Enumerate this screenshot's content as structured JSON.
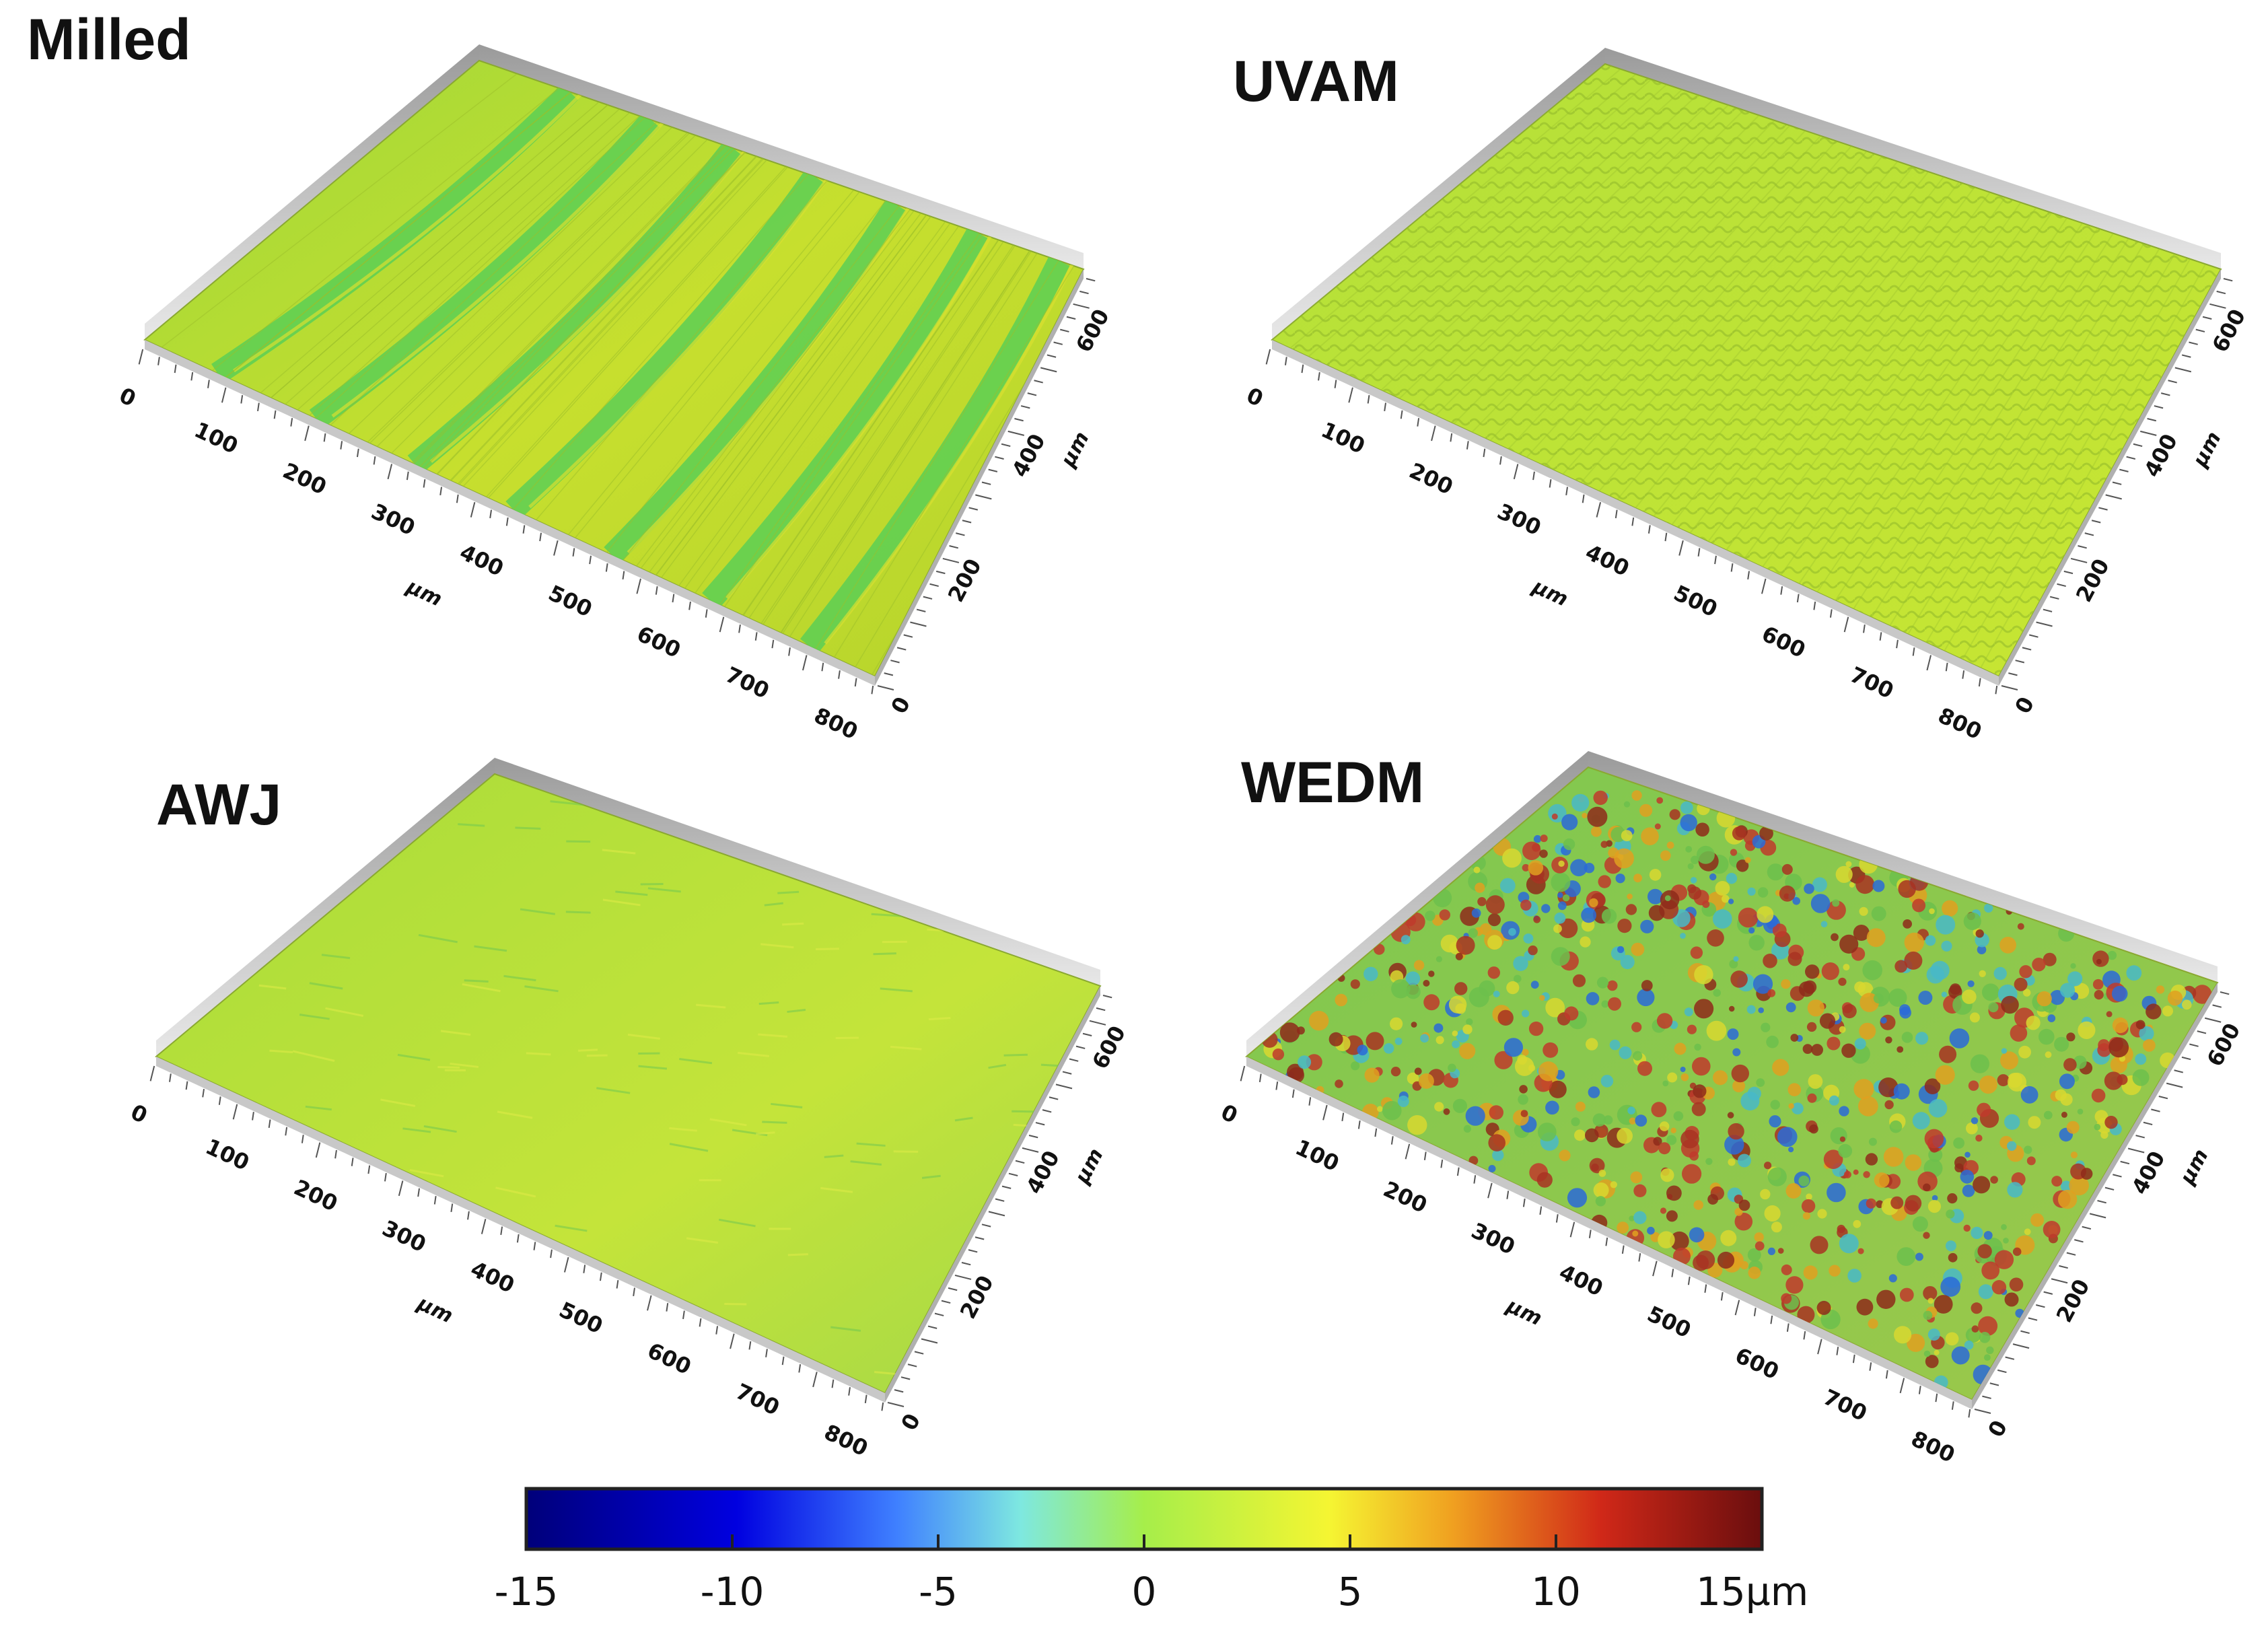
{
  "panels": [
    {
      "title": "Milled",
      "surface": "grooves",
      "x_ticks": [
        "0",
        "100",
        "200",
        "300",
        "400",
        "500",
        "600",
        "700",
        "800"
      ],
      "y_ticks": [
        "0",
        "200",
        "400",
        "600"
      ],
      "x_unit": "µm",
      "y_unit": "µm"
    },
    {
      "title": "UVAM",
      "surface": "ripples",
      "x_ticks": [
        "0",
        "100",
        "200",
        "300",
        "400",
        "500",
        "600",
        "700",
        "800"
      ],
      "y_ticks": [
        "0",
        "200",
        "400",
        "600"
      ],
      "x_unit": "µm",
      "y_unit": "µm"
    },
    {
      "title": "AWJ",
      "surface": "smooth",
      "x_ticks": [
        "0",
        "100",
        "200",
        "300",
        "400",
        "500",
        "600",
        "700",
        "800"
      ],
      "y_ticks": [
        "0",
        "200",
        "400",
        "600"
      ],
      "x_unit": "µm",
      "y_unit": "µm"
    },
    {
      "title": "WEDM",
      "surface": "rough",
      "x_ticks": [
        "0",
        "100",
        "200",
        "300",
        "400",
        "500",
        "600",
        "700",
        "800"
      ],
      "y_ticks": [
        "0",
        "200",
        "400",
        "600"
      ],
      "x_unit": "µm",
      "y_unit": "µm"
    }
  ],
  "colorbar": {
    "labels": [
      "-15",
      "-10",
      "-5",
      "0",
      "5",
      "10",
      "15µm"
    ],
    "min": -15,
    "max": 15,
    "colors": [
      "#00007a",
      "#0000e0",
      "#3f80ff",
      "#7ee8e0",
      "#a6ee4a",
      "#f5f532",
      "#f0a020",
      "#d02818",
      "#6a0e0e"
    ]
  }
}
